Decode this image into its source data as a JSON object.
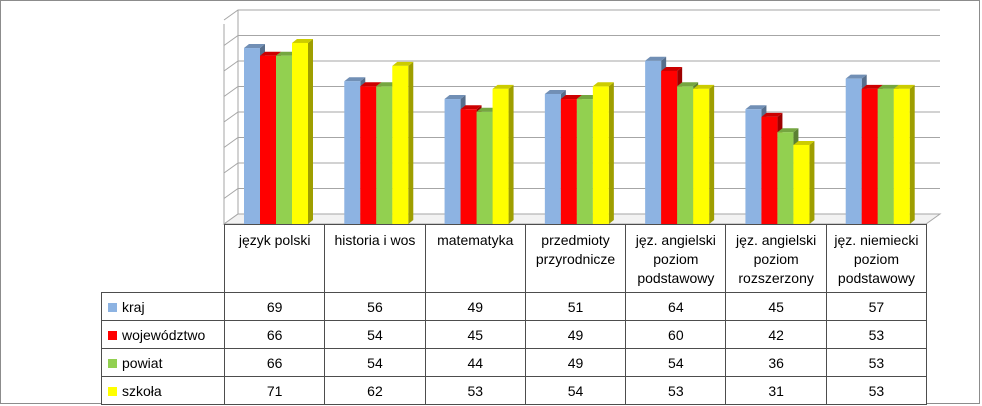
{
  "chart_data": {
    "type": "bar",
    "title": "",
    "xlabel": "",
    "ylabel": "",
    "ylim": [
      0,
      80
    ],
    "grid": true,
    "legend": "data-table-left",
    "categories": [
      "język polski",
      "historia i wos",
      "matematyka",
      "przedmioty przyrodnicze",
      "jęz. angielski poziom podstawowy",
      "jęz. angielski poziom rozszerzony",
      "jęz. niemiecki poziom podstawowy"
    ],
    "series": [
      {
        "name": "kraj",
        "color": "#8db3e2",
        "values": [
          69,
          56,
          49,
          51,
          64,
          45,
          57
        ]
      },
      {
        "name": "województwo",
        "color": "#ff0000",
        "values": [
          66,
          54,
          45,
          49,
          60,
          42,
          53
        ]
      },
      {
        "name": "powiat",
        "color": "#92d050",
        "values": [
          66,
          54,
          44,
          49,
          54,
          36,
          53
        ]
      },
      {
        "name": "szkoła",
        "color": "#ffff00",
        "values": [
          71,
          62,
          53,
          54,
          53,
          31,
          53
        ]
      }
    ]
  }
}
